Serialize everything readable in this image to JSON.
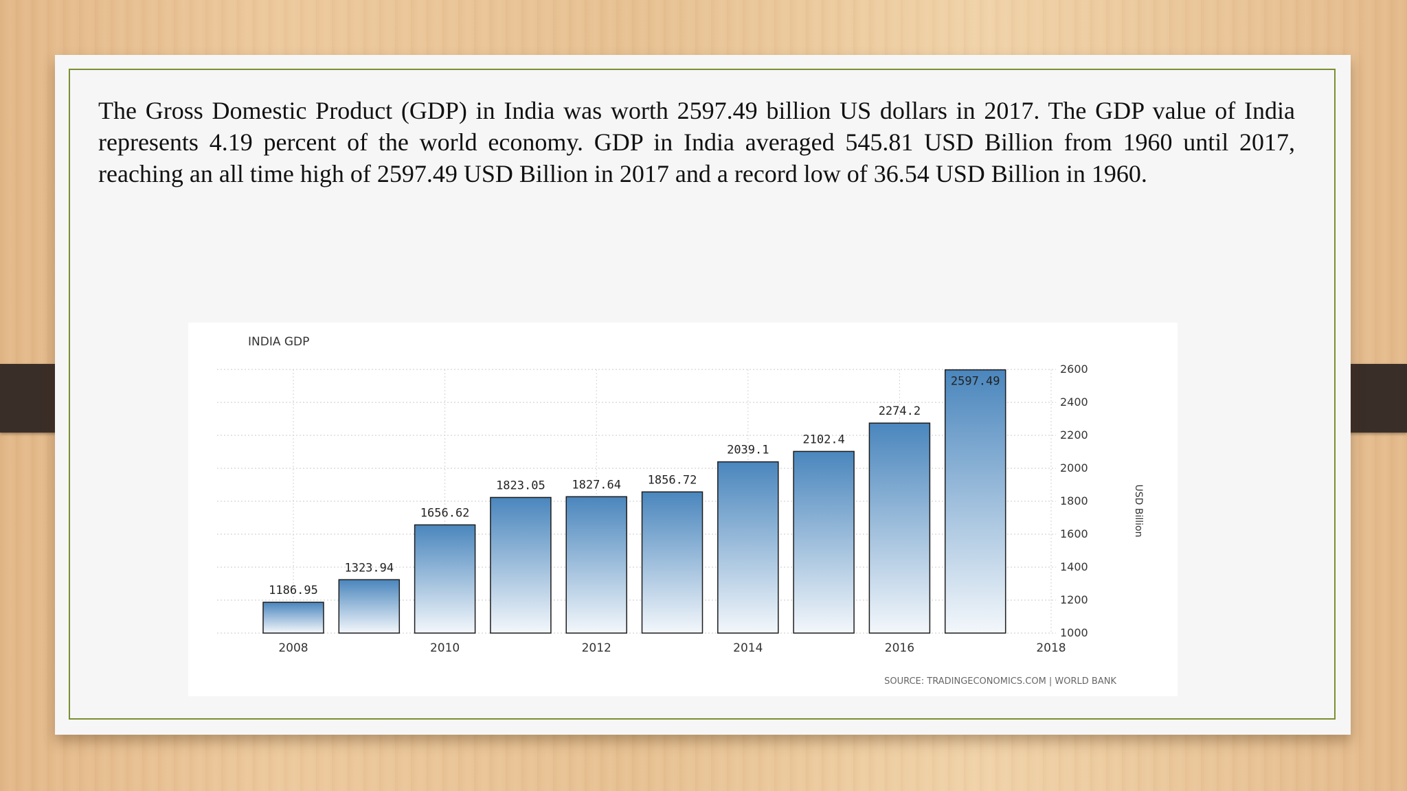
{
  "slide": {
    "paragraph": "The Gross Domestic Product (GDP) in India was worth 2597.49 billion US dollars in 2017. The GDP value of India represents 4.19 percent of the world economy. GDP in India averaged 545.81 USD Billion from 1960 until 2017, reaching an all time high of 2597.49 USD Billion in 2017 and a record low of 36.54 USD Billion in 1960."
  },
  "colors": {
    "bar_top": "#4a86bd",
    "bar_bottom": "#f3f7fb",
    "border": "#7a8f2e"
  },
  "chart_data": {
    "type": "bar",
    "title": "INDIA GDP",
    "ylabel": "USD Billion",
    "source": "SOURCE: TRADINGECONOMICS.COM | WORLD BANK",
    "x": [
      2008,
      2009,
      2010,
      2011,
      2012,
      2013,
      2014,
      2015,
      2016,
      2017
    ],
    "values": [
      1186.95,
      1323.94,
      1656.62,
      1823.05,
      1827.64,
      1856.72,
      2039.1,
      2102.4,
      2274.2,
      2597.49
    ],
    "value_labels": [
      "1186.95",
      "1323.94",
      "1656.62",
      "1823.05",
      "1827.64",
      "1856.72",
      "2039.1",
      "2102.4",
      "2274.2",
      "2597.49"
    ],
    "xticks": [
      "2008",
      "2010",
      "2012",
      "2014",
      "2016",
      "2018"
    ],
    "xlim": [
      2008,
      2018
    ],
    "yticks": [
      "1000",
      "1200",
      "1400",
      "1600",
      "1800",
      "2000",
      "2200",
      "2400",
      "2600"
    ],
    "ylim": [
      1000,
      2600
    ],
    "y_axis_side": "right",
    "grid": true,
    "legend": "none"
  }
}
